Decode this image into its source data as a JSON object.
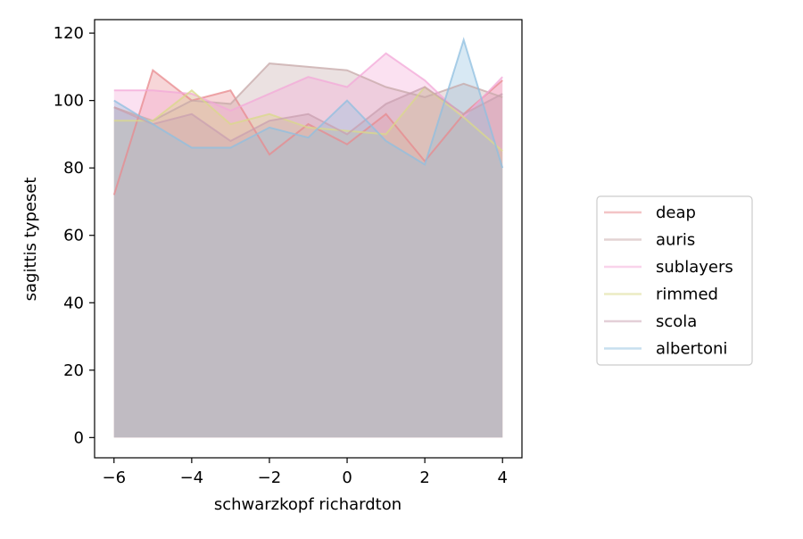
{
  "chart_data": {
    "type": "area",
    "title": "",
    "xlabel": "schwarzkopf richardton",
    "ylabel": "sagittis typeset",
    "xlim": [
      -6.5,
      4.5
    ],
    "ylim": [
      -6,
      124
    ],
    "x_ticks": [
      -6,
      -4,
      -2,
      0,
      2,
      4
    ],
    "x_tick_labels": [
      "−6",
      "−4",
      "−2",
      "0",
      "2",
      "4"
    ],
    "y_ticks": [
      0,
      20,
      40,
      60,
      80,
      100,
      120
    ],
    "y_tick_labels": [
      "0",
      "20",
      "40",
      "60",
      "80",
      "100",
      "120"
    ],
    "grid": false,
    "legend_position": "center-right, outside plot",
    "x": [
      -6,
      -5,
      -4,
      -3,
      -2,
      -1,
      0,
      1,
      2,
      3,
      4
    ],
    "series": [
      {
        "name": "deap",
        "color": "#e8898e",
        "values": [
          72,
          109,
          100,
          103,
          84,
          93,
          87,
          96,
          82,
          96,
          106
        ]
      },
      {
        "name": "auris",
        "color": "#c7a8a8",
        "values": [
          98,
          94,
          100,
          99,
          111,
          110,
          109,
          104,
          101,
          105,
          101
        ]
      },
      {
        "name": "sublayers",
        "color": "#f3a8d8",
        "values": [
          103,
          103,
          102,
          97,
          102,
          107,
          104,
          114,
          106,
          95,
          107
        ]
      },
      {
        "name": "rimmed",
        "color": "#d9d98a",
        "values": [
          94,
          94,
          103,
          93,
          96,
          92,
          91,
          90,
          104,
          95,
          85
        ]
      },
      {
        "name": "scola",
        "color": "#c9a0b0",
        "values": [
          98,
          93,
          96,
          88,
          94,
          96,
          90,
          99,
          104,
          96,
          102
        ]
      },
      {
        "name": "albertoni",
        "color": "#8fbfe0",
        "values": [
          100,
          93,
          86,
          86,
          92,
          89,
          100,
          88,
          81,
          118,
          80
        ]
      }
    ]
  }
}
